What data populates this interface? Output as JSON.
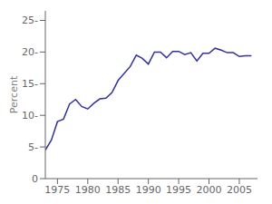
{
  "chart_data": {
    "type": "line",
    "x": [
      1973,
      1974,
      1975,
      1976,
      1977,
      1978,
      1979,
      1980,
      1981,
      1982,
      1983,
      1984,
      1985,
      1986,
      1987,
      1988,
      1989,
      1990,
      1991,
      1992,
      1993,
      1994,
      1995,
      1996,
      1997,
      1998,
      1999,
      2000,
      2001,
      2002,
      2003,
      2004,
      2005,
      2006,
      2007
    ],
    "values": [
      4.5,
      6.1,
      9.0,
      9.4,
      11.8,
      12.5,
      11.4,
      11.0,
      11.9,
      12.6,
      12.7,
      13.6,
      15.5,
      16.6,
      17.7,
      19.5,
      19.0,
      18.1,
      20.0,
      20.0,
      19.1,
      20.1,
      20.1,
      19.6,
      19.9,
      18.6,
      19.8,
      19.8,
      20.6,
      20.3,
      19.9,
      19.9,
      19.3,
      19.4,
      19.4
    ],
    "color": "#333399",
    "ylabel": "Percent",
    "xlim": [
      1973,
      2008
    ],
    "ylim": [
      0,
      26.5
    ],
    "xticks": [
      1975,
      1980,
      1985,
      1990,
      1995,
      2000,
      2005
    ],
    "yticks": [
      0,
      {
        "value": 5,
        "label": "5-"
      },
      {
        "value": 10,
        "label": "10-"
      },
      {
        "value": 15,
        "label": "15-"
      },
      {
        "value": 20,
        "label": "20-"
      },
      {
        "value": 25,
        "label": "25-"
      }
    ],
    "grid": false
  }
}
